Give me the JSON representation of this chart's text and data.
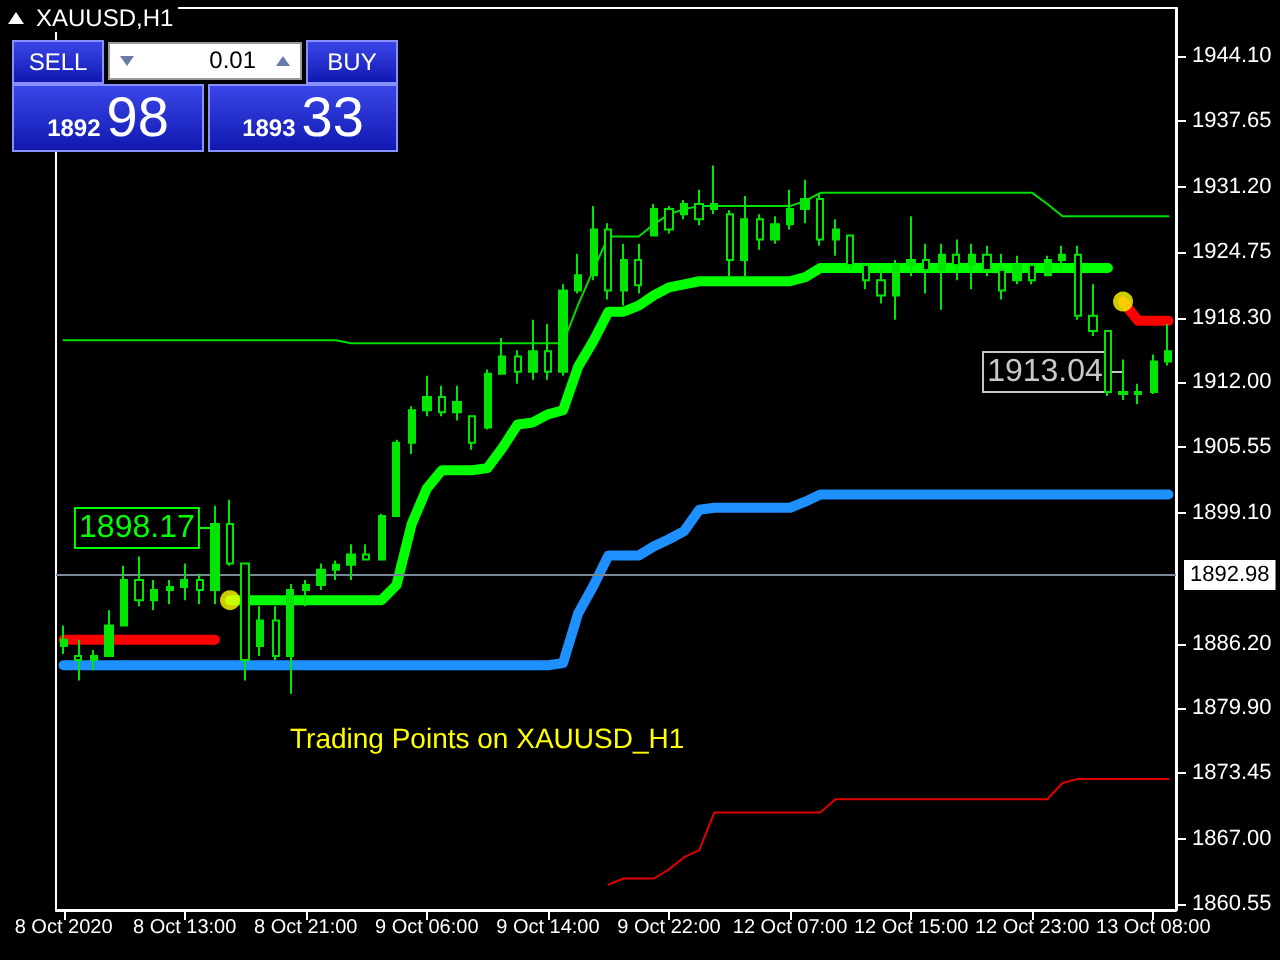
{
  "chart_data": {
    "type": "candlestick",
    "title": "XAUUSD,H1",
    "color": "#00e600",
    "categories": [
      "8 Oct 2020",
      null,
      null,
      null,
      null,
      null,
      null,
      null,
      "8 Oct 13:00",
      null,
      null,
      null,
      null,
      null,
      null,
      null,
      "8 Oct 21:00",
      null,
      null,
      null,
      null,
      null,
      null,
      null,
      "9 Oct 06:00",
      null,
      null,
      null,
      null,
      null,
      null,
      null,
      "9 Oct 14:00",
      null,
      null,
      null,
      null,
      null,
      null,
      null,
      "9 Oct 22:00",
      null,
      null,
      null,
      null,
      null,
      null,
      null,
      "12 Oct 07:00",
      null,
      null,
      null,
      null,
      null,
      null,
      null,
      "12 Oct 15:00",
      null,
      null,
      null,
      null,
      null,
      null,
      null,
      "12 Oct 23:00",
      null,
      null,
      null,
      null,
      null,
      null,
      null,
      "13 Oct 08:00",
      null
    ],
    "ohlc": [
      [
        1886.0,
        1888.0,
        1885.2,
        1886.6
      ],
      [
        1885.0,
        1886.6,
        1882.6,
        1884.6
      ],
      [
        1884.6,
        1885.6,
        1883.6,
        1885.0
      ],
      [
        1885.0,
        1889.5,
        1885.0,
        1888.0
      ],
      [
        1888.0,
        1893.9,
        1888.0,
        1892.5
      ],
      [
        1892.5,
        1894.8,
        1889.9,
        1890.5
      ],
      [
        1890.5,
        1892.5,
        1889.5,
        1891.5
      ],
      [
        1891.5,
        1892.5,
        1890.1,
        1891.8
      ],
      [
        1891.8,
        1894.1,
        1890.5,
        1892.5
      ],
      [
        1892.5,
        1893.1,
        1890.1,
        1891.5
      ],
      [
        1891.5,
        1899.8,
        1890.1,
        1898.0
      ],
      [
        1898.0,
        1900.4,
        1893.9,
        1894.1
      ],
      [
        1894.1,
        1894.1,
        1882.6,
        1884.6
      ],
      [
        1886.0,
        1889.9,
        1885.0,
        1888.5
      ],
      [
        1888.5,
        1889.9,
        1884.6,
        1885.0
      ],
      [
        1885.0,
        1892.1,
        1881.3,
        1891.5
      ],
      [
        1891.5,
        1892.5,
        1889.9,
        1892.0
      ],
      [
        1892.0,
        1894.1,
        1891.5,
        1893.5
      ],
      [
        1893.5,
        1894.4,
        1892.5,
        1894.0
      ],
      [
        1894.0,
        1896.0,
        1892.5,
        1895.0
      ],
      [
        1895.0,
        1896.0,
        1894.4,
        1894.5
      ],
      [
        1894.5,
        1899.0,
        1894.4,
        1898.8
      ],
      [
        1898.8,
        1906.3,
        1898.8,
        1906.0
      ],
      [
        1906.0,
        1909.6,
        1904.9,
        1909.2
      ],
      [
        1909.2,
        1912.6,
        1908.6,
        1910.5
      ],
      [
        1910.5,
        1911.6,
        1908.6,
        1909.0
      ],
      [
        1909.0,
        1911.6,
        1908.2,
        1910.0
      ],
      [
        1908.6,
        1908.6,
        1905.3,
        1906.0
      ],
      [
        1907.5,
        1913.2,
        1907.3,
        1912.8
      ],
      [
        1912.8,
        1916.3,
        1912.8,
        1914.5
      ],
      [
        1914.5,
        1915.1,
        1911.8,
        1913.0
      ],
      [
        1913.0,
        1918.1,
        1912.2,
        1915.0
      ],
      [
        1915.0,
        1917.7,
        1912.2,
        1913.0
      ],
      [
        1913.0,
        1921.6,
        1912.6,
        1921.0
      ],
      [
        1921.0,
        1924.6,
        1920.7,
        1922.5
      ],
      [
        1922.5,
        1929.3,
        1922.0,
        1927.0
      ],
      [
        1927.0,
        1927.6,
        1920.1,
        1921.0
      ],
      [
        1921.0,
        1925.6,
        1919.5,
        1924.0
      ],
      [
        1924.0,
        1925.6,
        1920.7,
        1921.5
      ],
      [
        1926.4,
        1929.5,
        1926.4,
        1929.0
      ],
      [
        1929.0,
        1929.3,
        1926.6,
        1927.0
      ],
      [
        1928.5,
        1929.9,
        1928.0,
        1929.5
      ],
      [
        1929.5,
        1930.9,
        1927.4,
        1928.0
      ],
      [
        1929.0,
        1933.3,
        1928.5,
        1929.5
      ],
      [
        1928.5,
        1928.9,
        1922.4,
        1924.0
      ],
      [
        1924.0,
        1930.3,
        1922.4,
        1928.0
      ],
      [
        1928.0,
        1928.5,
        1925.0,
        1926.0
      ],
      [
        1926.0,
        1928.3,
        1925.6,
        1927.5
      ],
      [
        1927.5,
        1930.9,
        1927.0,
        1929.0
      ],
      [
        1929.0,
        1931.9,
        1927.6,
        1930.0
      ],
      [
        1930.0,
        1930.5,
        1925.4,
        1926.0
      ],
      [
        1926.0,
        1928.0,
        1924.4,
        1927.0
      ],
      [
        1926.4,
        1926.4,
        1923.0,
        1923.5
      ],
      [
        1923.5,
        1923.6,
        1921.1,
        1922.0
      ],
      [
        1922.0,
        1923.0,
        1919.7,
        1920.5
      ],
      [
        1920.5,
        1924.0,
        1918.1,
        1923.5
      ],
      [
        1923.5,
        1928.3,
        1922.4,
        1924.0
      ],
      [
        1924.0,
        1925.6,
        1920.7,
        1923.0
      ],
      [
        1923.0,
        1925.6,
        1919.1,
        1924.5
      ],
      [
        1924.5,
        1926.0,
        1922.0,
        1923.5
      ],
      [
        1923.5,
        1925.6,
        1921.1,
        1924.5
      ],
      [
        1924.5,
        1925.4,
        1922.4,
        1923.0
      ],
      [
        1923.0,
        1924.6,
        1920.1,
        1921.0
      ],
      [
        1922.0,
        1924.4,
        1921.6,
        1923.5
      ],
      [
        1923.5,
        1923.6,
        1921.6,
        1922.0
      ],
      [
        1922.5,
        1924.4,
        1922.4,
        1924.0
      ],
      [
        1924.0,
        1925.4,
        1923.0,
        1924.5
      ],
      [
        1924.5,
        1925.4,
        1918.1,
        1918.5
      ],
      [
        1918.5,
        1921.6,
        1916.5,
        1917.0
      ],
      [
        1917.0,
        1917.1,
        1910.6,
        1911.0
      ],
      [
        1911.0,
        1914.2,
        1910.2,
        1910.8
      ],
      [
        1910.8,
        1911.8,
        1909.8,
        1911.0
      ],
      [
        1911.0,
        1914.7,
        1910.8,
        1914.0
      ],
      [
        1914.0,
        1917.7,
        1913.6,
        1915.0
      ]
    ],
    "series": [
      {
        "type": "line",
        "color": "#00ff00",
        "values": [
          null,
          null,
          null,
          null,
          null,
          null,
          null,
          null,
          null,
          null,
          null,
          1890.5,
          1890.5,
          1890.5,
          1890.5,
          1890.5,
          1890.5,
          1890.5,
          1890.5,
          1890.5,
          1890.5,
          1890.5,
          1892.0,
          1898.0,
          1901.5,
          1903.3,
          1903.3,
          1903.3,
          1903.5,
          1905.5,
          1907.8,
          1908.0,
          1908.8,
          1909.2,
          1913.5,
          1916.0,
          1918.9,
          1918.9,
          1919.5,
          1920.5,
          1921.3,
          1921.6,
          1921.9,
          1921.9,
          1921.9,
          1921.9,
          1921.9,
          1921.9,
          1921.9,
          1922.3,
          1923.2,
          1923.2,
          1923.2,
          1923.2,
          1923.2,
          1923.2,
          1923.2,
          1923.2,
          1923.2,
          1923.2,
          1923.2,
          1923.2,
          1923.2,
          1923.2,
          1923.2,
          1923.2,
          1923.2,
          1923.2,
          1923.2,
          1923.2,
          null,
          null,
          null,
          null
        ]
      },
      {
        "type": "line",
        "color": "#ff0000",
        "values": [
          1886.6,
          1886.6,
          1886.6,
          1886.6,
          1886.6,
          1886.6,
          1886.6,
          1886.6,
          1886.6,
          1886.6,
          1886.6,
          null,
          null,
          null,
          null,
          null,
          null,
          null,
          null,
          null,
          null,
          null,
          null,
          null,
          null,
          null,
          null,
          null,
          null,
          null,
          null,
          null,
          null,
          null,
          null,
          null,
          null,
          null,
          null,
          null,
          null,
          null,
          null,
          null,
          null,
          null,
          null,
          null,
          null,
          null,
          null,
          null,
          null,
          null,
          null,
          null,
          null,
          null,
          null,
          null,
          null,
          null,
          null,
          null,
          null,
          null,
          null,
          null,
          null,
          null,
          1919.9,
          1918.0,
          1918.0,
          1918.0
        ]
      },
      {
        "type": "line",
        "color": "#1e90ff",
        "values": [
          1884.1,
          1884.1,
          1884.1,
          1884.1,
          1884.1,
          1884.1,
          1884.1,
          1884.1,
          1884.1,
          1884.1,
          1884.1,
          1884.1,
          1884.1,
          1884.1,
          1884.1,
          1884.1,
          1884.1,
          1884.1,
          1884.1,
          1884.1,
          1884.1,
          1884.1,
          1884.1,
          1884.1,
          1884.1,
          1884.1,
          1884.1,
          1884.1,
          1884.1,
          1884.1,
          1884.1,
          1884.1,
          1884.1,
          1884.3,
          1889.2,
          1891.9,
          1894.9,
          1894.9,
          1894.9,
          1895.8,
          1896.5,
          1897.3,
          1899.4,
          1899.6,
          1899.6,
          1899.6,
          1899.6,
          1899.6,
          1899.6,
          1900.2,
          1900.9,
          1900.9,
          1900.9,
          1900.9,
          1900.9,
          1900.9,
          1900.9,
          1900.9,
          1900.9,
          1900.9,
          1900.9,
          1900.9,
          1900.9,
          1900.9,
          1900.9,
          1900.9,
          1900.9,
          1900.9,
          1900.9,
          1900.9,
          1900.9,
          1900.9,
          1900.9,
          1900.9
        ]
      },
      {
        "type": "line",
        "color": "#00dd00",
        "values": [
          1916.1,
          1916.1,
          1916.1,
          1916.1,
          1916.1,
          1916.1,
          1916.1,
          1916.1,
          1916.1,
          1916.1,
          1916.1,
          1916.1,
          1916.1,
          1916.1,
          1916.1,
          1916.1,
          1916.1,
          1916.1,
          1916.1,
          1915.8,
          1915.8,
          1915.8,
          1915.8,
          1915.8,
          1915.8,
          1915.8,
          1915.8,
          1915.8,
          1915.8,
          1915.8,
          1915.8,
          1915.8,
          1915.8,
          1915.8,
          1919.6,
          1923.0,
          1926.3,
          1926.3,
          1926.3,
          1927.5,
          1928.5,
          1929.0,
          1929.3,
          1929.3,
          1929.3,
          1929.3,
          1929.3,
          1929.3,
          1929.3,
          1929.8,
          1930.6,
          1930.6,
          1930.6,
          1930.6,
          1930.6,
          1930.6,
          1930.6,
          1930.6,
          1930.6,
          1930.6,
          1930.6,
          1930.6,
          1930.6,
          1930.6,
          1930.6,
          1929.5,
          1928.3,
          1928.3,
          1928.3,
          1928.3,
          1928.3,
          1928.3,
          1928.3,
          1928.3
        ]
      },
      {
        "type": "line",
        "color": "#e00000",
        "values": [
          null,
          null,
          null,
          null,
          null,
          null,
          null,
          null,
          null,
          null,
          null,
          null,
          null,
          null,
          null,
          null,
          null,
          null,
          null,
          null,
          null,
          null,
          null,
          null,
          null,
          null,
          null,
          null,
          null,
          null,
          null,
          null,
          null,
          null,
          null,
          null,
          1862.5,
          1863.1,
          1863.1,
          1863.1,
          1864.0,
          1865.2,
          1865.9,
          1869.6,
          1869.6,
          1869.6,
          1869.6,
          1869.6,
          1869.6,
          1869.6,
          1869.6,
          1870.9,
          1870.9,
          1870.9,
          1870.9,
          1870.9,
          1870.9,
          1870.9,
          1870.9,
          1870.9,
          1870.9,
          1870.9,
          1870.9,
          1870.9,
          1870.9,
          1870.9,
          1872.5,
          1872.9,
          1872.9,
          1872.9,
          1872.9,
          1872.9,
          1872.9,
          1872.9
        ]
      },
      {
        "type": "scatter",
        "color": "#ffff00",
        "marker": "circle",
        "values": [
          null,
          null,
          null,
          null,
          null,
          null,
          null,
          null,
          null,
          null,
          null,
          1890.5,
          null,
          null,
          null,
          null,
          null,
          null,
          null,
          null,
          null,
          null,
          null,
          null,
          null,
          null,
          null,
          null,
          null,
          null,
          null,
          null,
          null,
          null,
          null,
          null,
          null,
          null,
          null,
          null,
          null,
          null,
          null,
          null,
          null,
          null,
          null,
          null,
          null,
          null,
          null,
          null,
          null,
          null,
          null,
          null,
          null,
          null,
          null,
          null,
          null,
          null,
          null,
          null,
          null,
          null,
          null,
          null,
          null,
          null,
          1919.9,
          null,
          null,
          null
        ]
      }
    ],
    "ylim": [
      1860,
      1948.8
    ],
    "yticks": [
      {
        "value": 1944.1,
        "label": "1944.10"
      },
      {
        "value": 1937.65,
        "label": "1937.65"
      },
      {
        "value": 1931.2,
        "label": "1931.20"
      },
      {
        "value": 1924.75,
        "label": "1924.75"
      },
      {
        "value": 1918.3,
        "label": "1918.30"
      },
      {
        "value": 1912,
        "label": "1912.00"
      },
      {
        "value": 1905.55,
        "label": "1905.55"
      },
      {
        "value": 1899.1,
        "label": "1899.10"
      },
      {
        "value": 1886.2,
        "label": "1886.20"
      },
      {
        "value": 1879.9,
        "label": "1879.90"
      },
      {
        "value": 1873.45,
        "label": "1873.45"
      },
      {
        "value": 1867,
        "label": "1867.00"
      },
      {
        "value": 1860.55,
        "label": "1860.55"
      }
    ],
    "ref_lines": [
      {
        "axis": "y",
        "value": 1892.98,
        "label": "1892.98",
        "color": "#778899"
      }
    ],
    "annotations": [
      "Trading Points on XAUUSD_H1",
      "1898.17",
      "1913.04",
      "SELL",
      "0.01",
      "BUY",
      "1892",
      "98",
      "1893",
      "33"
    ],
    "grid": false
  }
}
